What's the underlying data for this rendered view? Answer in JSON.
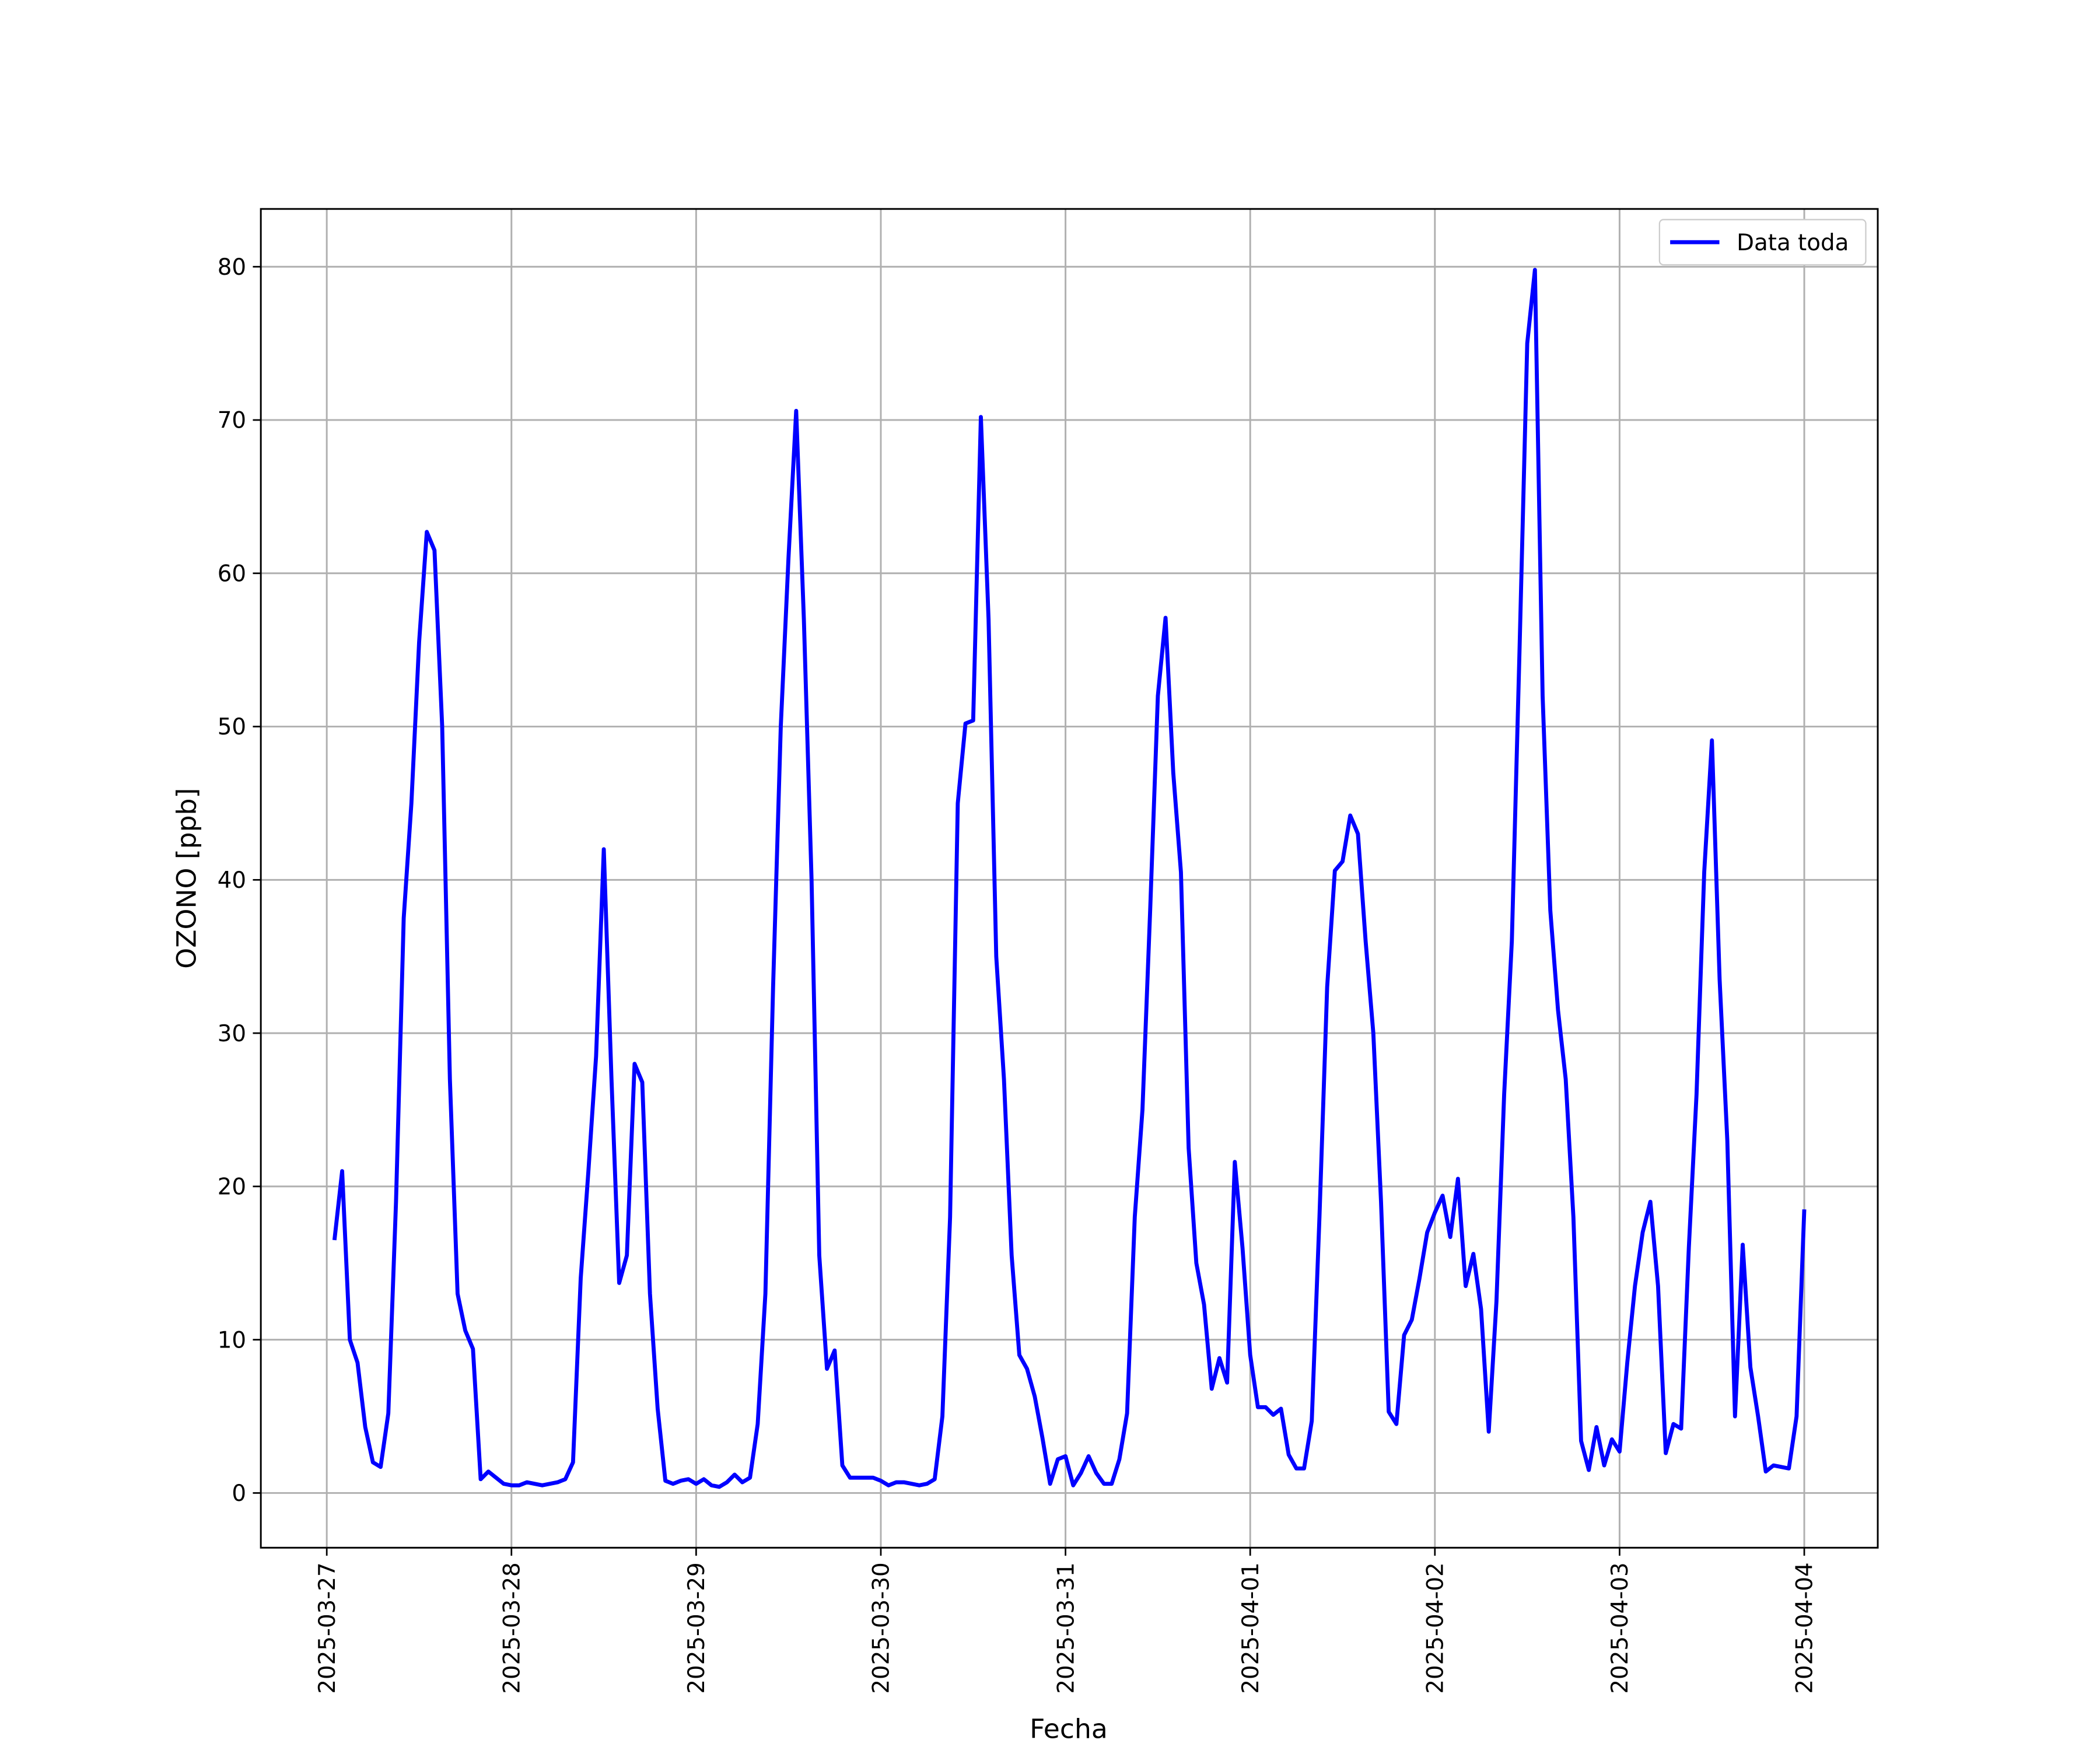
{
  "chart_data": {
    "type": "line",
    "xlabel": "Fecha",
    "ylabel": "OZONO [ppb]",
    "x": [
      "2025-03-27T01:00",
      "2025-03-27T02:00",
      "2025-03-27T03:00",
      "2025-03-27T04:00",
      "2025-03-27T05:00",
      "2025-03-27T06:00",
      "2025-03-27T07:00",
      "2025-03-27T08:00",
      "2025-03-27T09:00",
      "2025-03-27T10:00",
      "2025-03-27T11:00",
      "2025-03-27T12:00",
      "2025-03-27T13:00",
      "2025-03-27T14:00",
      "2025-03-27T15:00",
      "2025-03-27T16:00",
      "2025-03-27T17:00",
      "2025-03-27T18:00",
      "2025-03-27T19:00",
      "2025-03-27T20:00",
      "2025-03-27T21:00",
      "2025-03-27T22:00",
      "2025-03-27T23:00",
      "2025-03-28T00:00",
      "2025-03-28T01:00",
      "2025-03-28T02:00",
      "2025-03-28T03:00",
      "2025-03-28T04:00",
      "2025-03-28T05:00",
      "2025-03-28T06:00",
      "2025-03-28T07:00",
      "2025-03-28T08:00",
      "2025-03-28T09:00",
      "2025-03-28T10:00",
      "2025-03-28T11:00",
      "2025-03-28T12:00",
      "2025-03-28T13:00",
      "2025-03-28T14:00",
      "2025-03-28T15:00",
      "2025-03-28T16:00",
      "2025-03-28T17:00",
      "2025-03-28T18:00",
      "2025-03-28T19:00",
      "2025-03-28T20:00",
      "2025-03-28T21:00",
      "2025-03-28T22:00",
      "2025-03-28T23:00",
      "2025-03-29T00:00",
      "2025-03-29T01:00",
      "2025-03-29T02:00",
      "2025-03-29T03:00",
      "2025-03-29T04:00",
      "2025-03-29T05:00",
      "2025-03-29T06:00",
      "2025-03-29T07:00",
      "2025-03-29T08:00",
      "2025-03-29T09:00",
      "2025-03-29T10:00",
      "2025-03-29T11:00",
      "2025-03-29T12:00",
      "2025-03-29T13:00",
      "2025-03-29T14:00",
      "2025-03-29T15:00",
      "2025-03-29T16:00",
      "2025-03-29T17:00",
      "2025-03-29T18:00",
      "2025-03-29T19:00",
      "2025-03-29T20:00",
      "2025-03-29T21:00",
      "2025-03-29T22:00",
      "2025-03-29T23:00",
      "2025-03-30T00:00",
      "2025-03-30T01:00",
      "2025-03-30T02:00",
      "2025-03-30T03:00",
      "2025-03-30T04:00",
      "2025-03-30T05:00",
      "2025-03-30T06:00",
      "2025-03-30T07:00",
      "2025-03-30T08:00",
      "2025-03-30T09:00",
      "2025-03-30T10:00",
      "2025-03-30T11:00",
      "2025-03-30T12:00",
      "2025-03-30T13:00",
      "2025-03-30T14:00",
      "2025-03-30T15:00",
      "2025-03-30T16:00",
      "2025-03-30T17:00",
      "2025-03-30T18:00",
      "2025-03-30T19:00",
      "2025-03-30T20:00",
      "2025-03-30T21:00",
      "2025-03-30T22:00",
      "2025-03-30T23:00",
      "2025-03-31T00:00",
      "2025-03-31T01:00",
      "2025-03-31T02:00",
      "2025-03-31T03:00",
      "2025-03-31T04:00",
      "2025-03-31T05:00",
      "2025-03-31T06:00",
      "2025-03-31T07:00",
      "2025-03-31T08:00",
      "2025-03-31T09:00",
      "2025-03-31T10:00",
      "2025-03-31T11:00",
      "2025-03-31T12:00",
      "2025-03-31T13:00",
      "2025-03-31T14:00",
      "2025-03-31T15:00",
      "2025-03-31T16:00",
      "2025-03-31T17:00",
      "2025-03-31T18:00",
      "2025-03-31T19:00",
      "2025-03-31T20:00",
      "2025-03-31T21:00",
      "2025-03-31T22:00",
      "2025-03-31T23:00",
      "2025-04-01T00:00",
      "2025-04-01T01:00",
      "2025-04-01T02:00",
      "2025-04-01T03:00",
      "2025-04-01T04:00",
      "2025-04-01T05:00",
      "2025-04-01T06:00",
      "2025-04-01T07:00",
      "2025-04-01T08:00",
      "2025-04-01T09:00",
      "2025-04-01T10:00",
      "2025-04-01T11:00",
      "2025-04-01T12:00",
      "2025-04-01T13:00",
      "2025-04-01T14:00",
      "2025-04-01T15:00",
      "2025-04-01T16:00",
      "2025-04-01T17:00",
      "2025-04-01T18:00",
      "2025-04-01T19:00",
      "2025-04-01T20:00",
      "2025-04-01T21:00",
      "2025-04-01T22:00",
      "2025-04-01T23:00",
      "2025-04-02T00:00",
      "2025-04-02T01:00",
      "2025-04-02T02:00",
      "2025-04-02T03:00",
      "2025-04-02T04:00",
      "2025-04-02T05:00",
      "2025-04-02T06:00",
      "2025-04-02T07:00",
      "2025-04-02T08:00",
      "2025-04-02T09:00",
      "2025-04-02T10:00",
      "2025-04-02T11:00",
      "2025-04-02T12:00",
      "2025-04-02T13:00",
      "2025-04-02T14:00",
      "2025-04-02T15:00",
      "2025-04-02T16:00",
      "2025-04-02T17:00",
      "2025-04-02T18:00",
      "2025-04-02T19:00",
      "2025-04-02T20:00",
      "2025-04-02T21:00",
      "2025-04-02T22:00",
      "2025-04-02T23:00",
      "2025-04-03T00:00",
      "2025-04-03T01:00",
      "2025-04-03T02:00",
      "2025-04-03T03:00",
      "2025-04-03T04:00",
      "2025-04-03T05:00",
      "2025-04-03T06:00",
      "2025-04-03T07:00",
      "2025-04-03T08:00",
      "2025-04-03T09:00",
      "2025-04-03T10:00",
      "2025-04-03T11:00",
      "2025-04-03T12:00",
      "2025-04-03T13:00",
      "2025-04-03T14:00",
      "2025-04-03T15:00",
      "2025-04-03T16:00",
      "2025-04-03T17:00",
      "2025-04-03T18:00",
      "2025-04-03T19:00",
      "2025-04-03T20:00",
      "2025-04-03T21:00",
      "2025-04-03T22:00",
      "2025-04-03T23:00",
      "2025-04-04T00:00"
    ],
    "series": [
      {
        "name": "Data toda",
        "color": "#0000ff",
        "values": [
          16.5,
          21,
          10,
          8.5,
          4.3,
          2,
          1.7,
          5.2,
          19,
          37.5,
          45,
          55.5,
          62.7,
          61.5,
          50,
          27,
          13,
          10.6,
          9.4,
          0.9,
          1.4,
          1.0,
          0.6,
          0.5,
          0.5,
          0.7,
          0.6,
          0.5,
          0.6,
          0.7,
          0.9,
          2,
          14,
          21,
          28.5,
          42,
          27,
          13.7,
          15.5,
          28,
          26.8,
          13,
          5.5,
          0.8,
          0.6,
          0.8,
          0.9,
          0.6,
          0.9,
          0.5,
          0.4,
          0.7,
          1.2,
          0.7,
          1.0,
          4.5,
          13,
          33,
          50,
          61,
          70.6,
          57,
          40,
          15.5,
          8.1,
          9.3,
          1.8,
          1.0,
          1.0,
          1.0,
          1.0,
          0.8,
          0.5,
          0.7,
          0.7,
          0.6,
          0.5,
          0.6,
          0.9,
          5,
          18,
          45,
          50.2,
          50.4,
          70.2,
          57,
          35,
          27,
          15.5,
          9,
          8.1,
          6.3,
          3.6,
          0.6,
          2.2,
          2.4,
          0.5,
          1.3,
          2.4,
          1.3,
          0.6,
          0.6,
          2.2,
          5.2,
          18,
          25,
          38,
          52,
          57.1,
          47,
          40.5,
          22.5,
          15,
          12.3,
          6.8,
          8.8,
          7.2,
          21.6,
          16,
          9,
          5.6,
          5.6,
          5.1,
          5.5,
          2.5,
          1.6,
          1.6,
          4.7,
          18,
          33,
          40.6,
          41.2,
          44.2,
          43,
          36,
          30,
          19,
          5.3,
          4.5,
          10.3,
          11.3,
          14,
          17,
          18.3,
          19.4,
          16.7,
          20.5,
          13.5,
          15.6,
          12,
          4,
          12.5,
          26,
          36,
          55,
          75,
          79.8,
          52,
          38,
          31.5,
          27,
          18,
          3.4,
          1.5,
          4.3,
          1.8,
          3.5,
          2.7,
          8.5,
          13.5,
          17,
          19,
          13.5,
          2.6,
          4.5,
          4.2,
          16,
          26,
          40.5,
          49.1,
          33.5,
          23,
          5,
          16.2,
          8.2,
          5,
          1.4,
          1.8,
          1.7,
          1.6,
          5,
          18.5
        ]
      }
    ],
    "xlim": [
      "2025-03-26T15:26",
      "2025-04-04T09:33"
    ],
    "xticks": [
      "2025-03-27",
      "2025-03-28",
      "2025-03-29",
      "2025-03-30",
      "2025-03-31",
      "2025-04-01",
      "2025-04-02",
      "2025-04-03",
      "2025-04-04"
    ],
    "ylim": [
      -3.57,
      83.77
    ],
    "yticks": [
      0,
      10,
      20,
      30,
      40,
      50,
      60,
      70,
      80
    ],
    "grid": true,
    "legend": "upper right"
  }
}
